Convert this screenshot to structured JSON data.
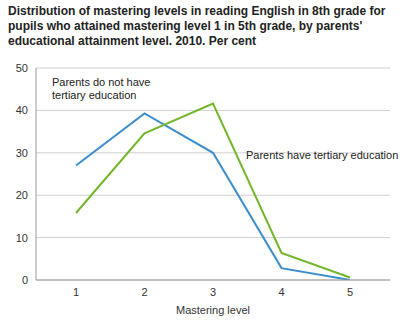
{
  "chart_data": {
    "type": "line",
    "title": "Distribution of mastering levels in reading English in 8th grade for pupils who attained mastering level 1 in 5th grade, by parents' educational attainment level. 2010. Per cent",
    "x_label": "Mastering level",
    "categories": [
      1,
      2,
      3,
      4,
      5
    ],
    "series": [
      {
        "name": "Parents do not have tertiary education",
        "color": "#3c8dcb",
        "values": [
          27,
          39.3,
          30,
          2.8,
          0
        ]
      },
      {
        "name": "Parents have tertiary education",
        "color": "#72b62b",
        "values": [
          15.8,
          34.6,
          41.6,
          6.4,
          0.6
        ]
      }
    ],
    "ylim": [
      0,
      50
    ],
    "yticks": [
      0,
      10,
      20,
      30,
      40,
      50
    ],
    "grid": true
  }
}
